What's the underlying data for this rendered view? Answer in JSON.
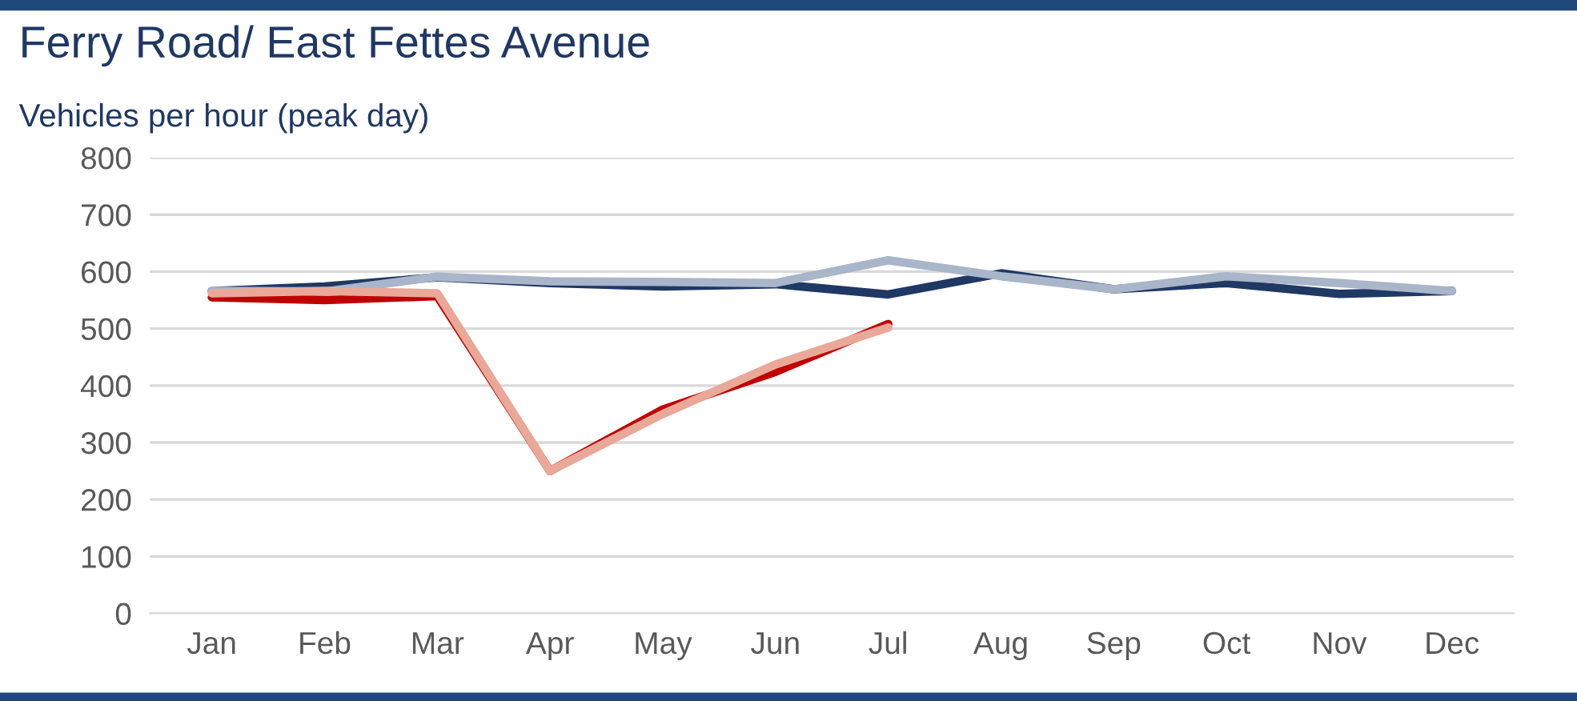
{
  "chart_data": {
    "type": "line",
    "title": "Ferry Road/ East Fettes Avenue",
    "subtitle": "Vehicles per hour (peak day)",
    "categories": [
      "Jan",
      "Feb",
      "Mar",
      "Apr",
      "May",
      "Jun",
      "Jul",
      "Aug",
      "Sep",
      "Oct",
      "Nov",
      "Dec"
    ],
    "series": [
      {
        "color": "#1f3864",
        "values": [
          566,
          574,
          590,
          580,
          574,
          578,
          560,
          597,
          569,
          580,
          561,
          566
        ]
      },
      {
        "color": "#a9b5c9",
        "values": [
          566,
          565,
          591,
          583,
          582,
          580,
          620,
          592,
          569,
          592,
          580,
          566
        ]
      },
      {
        "color": "#c00000",
        "values": [
          555,
          550,
          557,
          250,
          358,
          424,
          508,
          null,
          null,
          null,
          null,
          null
        ]
      },
      {
        "color": "#eaa898",
        "values": [
          562,
          566,
          562,
          250,
          350,
          437,
          502,
          null,
          null,
          null,
          null,
          null
        ]
      }
    ],
    "ylim": [
      0,
      800
    ],
    "yticks": [
      0,
      100,
      200,
      300,
      400,
      500,
      600,
      700,
      800
    ],
    "grid": "y",
    "legend": false,
    "marker": "none",
    "line_style": "solid"
  }
}
